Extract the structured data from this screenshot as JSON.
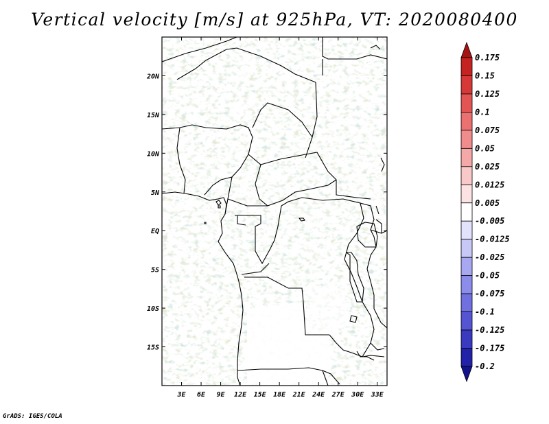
{
  "title": "Vertical velocity [m/s] at 925hPa, VT: 2020080400",
  "credit": "GrADS: IGES/COLA",
  "lat_ticks": [
    {
      "value": 20,
      "label": "20N"
    },
    {
      "value": 15,
      "label": "15N"
    },
    {
      "value": 10,
      "label": "10N"
    },
    {
      "value": 5,
      "label": "5N"
    },
    {
      "value": 0,
      "label": "EQ"
    },
    {
      "value": -5,
      "label": "5S"
    },
    {
      "value": -10,
      "label": "10S"
    },
    {
      "value": -15,
      "label": "15S"
    }
  ],
  "lon_ticks": [
    {
      "value": 3,
      "label": "3E"
    },
    {
      "value": 6,
      "label": "6E"
    },
    {
      "value": 9,
      "label": "9E"
    },
    {
      "value": 12,
      "label": "12E"
    },
    {
      "value": 15,
      "label": "15E"
    },
    {
      "value": 18,
      "label": "18E"
    },
    {
      "value": 21,
      "label": "21E"
    },
    {
      "value": 24,
      "label": "24E"
    },
    {
      "value": 27,
      "label": "27E"
    },
    {
      "value": 30,
      "label": "30E"
    },
    {
      "value": 33,
      "label": "33E"
    }
  ],
  "map_extent": {
    "lon_min": 0,
    "lon_max": 34.5,
    "lat_min": -20,
    "lat_max": 25
  },
  "colorbar": {
    "labels": [
      "0.175",
      "0.15",
      "0.125",
      "0.1",
      "0.075",
      "0.05",
      "0.025",
      "0.0125",
      "0.005",
      "-0.005",
      "-0.0125",
      "-0.025",
      "-0.05",
      "-0.075",
      "-0.1",
      "-0.125",
      "-0.175",
      "-0.2"
    ],
    "colors": [
      "#a51313",
      "#c52222",
      "#d63838",
      "#e35454",
      "#eb7070",
      "#f08c8c",
      "#f5a8a8",
      "#f9c8c8",
      "#fce2e2",
      "#ffffff",
      "#e2e2fc",
      "#c8c8f7",
      "#a8a8f2",
      "#8c8ceb",
      "#7070e0",
      "#5555d3",
      "#3a3ac0",
      "#2222a8",
      "#12128a"
    ]
  }
}
